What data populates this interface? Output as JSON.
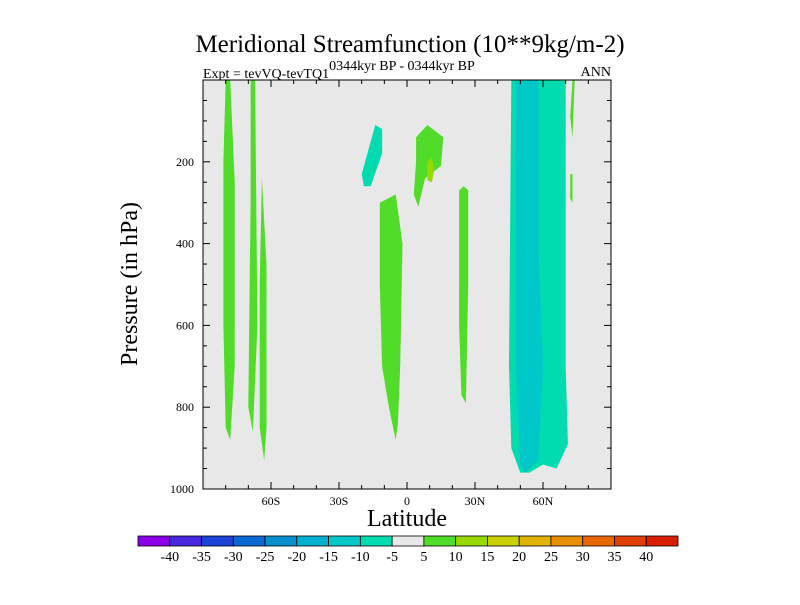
{
  "chart_data": {
    "type": "heatmap",
    "title": "Meridional Streamfunction (10**9kg/m-2)",
    "subtitle_left": "Expt = tevVQ-tevTQ1",
    "subtitle_left_super": "0344kyr BP - 0344kyr BP",
    "subtitle_right": "ANN",
    "xlabel": "Latitude",
    "ylabel": "Pressure (in hPa)",
    "xlim": [
      -90,
      90
    ],
    "ylim": [
      1000,
      0
    ],
    "x_ticks": [
      {
        "value": -60,
        "label": "60S"
      },
      {
        "value": -30,
        "label": "30S"
      },
      {
        "value": 0,
        "label": "0"
      },
      {
        "value": 30,
        "label": "30N"
      },
      {
        "value": 60,
        "label": "60N"
      }
    ],
    "y_ticks": [
      {
        "value": 200,
        "label": "200"
      },
      {
        "value": 400,
        "label": "400"
      },
      {
        "value": 600,
        "label": "600"
      },
      {
        "value": 800,
        "label": "800"
      },
      {
        "value": 1000,
        "label": "1000"
      }
    ],
    "background_color": "#e8e8e8",
    "colorbar": {
      "labels": [
        "-40",
        "-35",
        "-30",
        "-25",
        "-20",
        "-15",
        "-10",
        "-5",
        "5",
        "10",
        "15",
        "20",
        "25",
        "30",
        "35",
        "40"
      ],
      "colors": [
        "#8a00e8",
        "#4a28e0",
        "#1c44d6",
        "#0a68d2",
        "#0890cc",
        "#00b0d0",
        "#00c8c8",
        "#00dcb0",
        "#e8e8e8",
        "#50dc28",
        "#98d800",
        "#c8d000",
        "#e0b400",
        "#e89000",
        "#e86800",
        "#e04000",
        "#d82000"
      ]
    },
    "regions": [
      {
        "value": 7,
        "points": [
          [
            -80,
            0
          ],
          [
            -78,
            0
          ],
          [
            -76,
            250
          ],
          [
            -76,
            700
          ],
          [
            -78,
            880
          ],
          [
            -80,
            850
          ],
          [
            -81,
            600
          ],
          [
            -81,
            200
          ]
        ]
      },
      {
        "value": 7,
        "points": [
          [
            -69,
            0
          ],
          [
            -67,
            0
          ],
          [
            -66,
            600
          ],
          [
            -68,
            860
          ],
          [
            -70,
            800
          ],
          [
            -69,
            300
          ]
        ]
      },
      {
        "value": 7,
        "points": [
          [
            -64,
            240
          ],
          [
            -62,
            450
          ],
          [
            -62,
            850
          ],
          [
            -63,
            930
          ],
          [
            -65,
            850
          ],
          [
            -65,
            500
          ]
        ]
      },
      {
        "value": -7,
        "points": [
          [
            -20,
            230
          ],
          [
            -14,
            110
          ],
          [
            -11,
            120
          ],
          [
            -11,
            180
          ],
          [
            -16,
            260
          ],
          [
            -19,
            260
          ]
        ]
      },
      {
        "value": 7,
        "points": [
          [
            -12,
            300
          ],
          [
            -5,
            280
          ],
          [
            -2,
            400
          ],
          [
            -3,
            700
          ],
          [
            -4,
            840
          ],
          [
            -5,
            880
          ],
          [
            -8,
            800
          ],
          [
            -11,
            700
          ],
          [
            -12,
            500
          ]
        ]
      },
      {
        "value": 7,
        "points": [
          [
            4,
            140
          ],
          [
            9,
            110
          ],
          [
            16,
            140
          ],
          [
            15,
            210
          ],
          [
            8,
            240
          ],
          [
            5,
            310
          ],
          [
            3,
            280
          ],
          [
            4,
            200
          ]
        ]
      },
      {
        "value": 12,
        "points": [
          [
            9,
            200
          ],
          [
            11,
            190
          ],
          [
            12,
            220
          ],
          [
            11,
            250
          ],
          [
            9,
            245
          ]
        ]
      },
      {
        "value": 7,
        "points": [
          [
            23,
            270
          ],
          [
            25,
            260
          ],
          [
            27,
            270
          ],
          [
            27,
            500
          ],
          [
            26,
            790
          ],
          [
            24,
            770
          ],
          [
            23,
            600
          ]
        ]
      },
      {
        "value": -7,
        "points": [
          [
            46,
            0
          ],
          [
            70,
            0
          ],
          [
            70,
            700
          ],
          [
            71,
            890
          ],
          [
            66,
            950
          ],
          [
            60,
            940
          ],
          [
            54,
            960
          ],
          [
            50,
            960
          ],
          [
            46,
            900
          ],
          [
            45,
            700
          ]
        ]
      },
      {
        "value": -12,
        "points": [
          [
            48,
            0
          ],
          [
            58,
            0
          ],
          [
            58,
            400
          ],
          [
            60,
            700
          ],
          [
            58,
            930
          ],
          [
            54,
            950
          ],
          [
            52,
            960
          ],
          [
            50,
            940
          ],
          [
            48,
            700
          ]
        ]
      },
      {
        "value": 7,
        "points": [
          [
            73,
            0
          ],
          [
            74,
            0
          ],
          [
            73,
            140
          ],
          [
            72,
            90
          ]
        ]
      },
      {
        "value": 7,
        "points": [
          [
            72,
            230
          ],
          [
            73,
            230
          ],
          [
            73,
            300
          ],
          [
            72,
            290
          ]
        ]
      }
    ]
  }
}
